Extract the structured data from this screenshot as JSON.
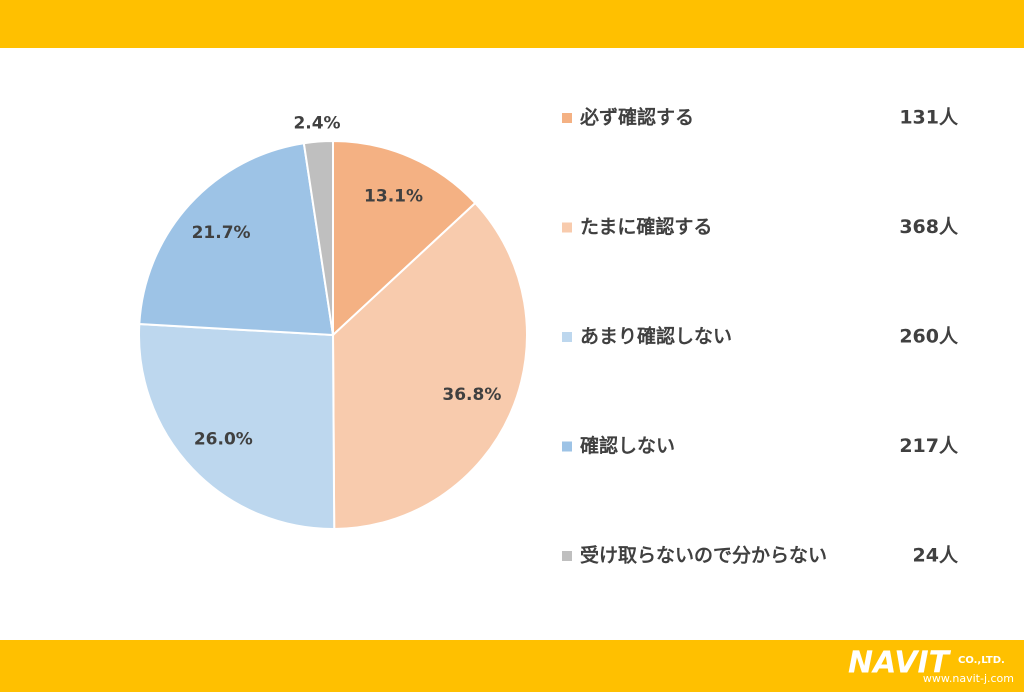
{
  "chart_data": {
    "type": "pie",
    "categories": [
      "必ず確認する",
      "たまに確認する",
      "あまり確認しない",
      "確認しない",
      "受け取らないので分からない"
    ],
    "values": [
      13.1,
      36.8,
      26.0,
      21.7,
      2.4
    ],
    "value_labels": [
      "13.1%",
      "36.8%",
      "26.0%",
      "21.7%",
      "2.4%"
    ],
    "colors": [
      "#F4B183",
      "#F8CBAD",
      "#BDD7EE",
      "#9DC3E6",
      "#BFBFBF"
    ],
    "count_labels": [
      "131人",
      "368人",
      "260人",
      "217人",
      "24人"
    ]
  },
  "footer": {
    "logo": "NAVIT",
    "company": "CO.,LTD.",
    "url": "www.navit-j.com"
  }
}
